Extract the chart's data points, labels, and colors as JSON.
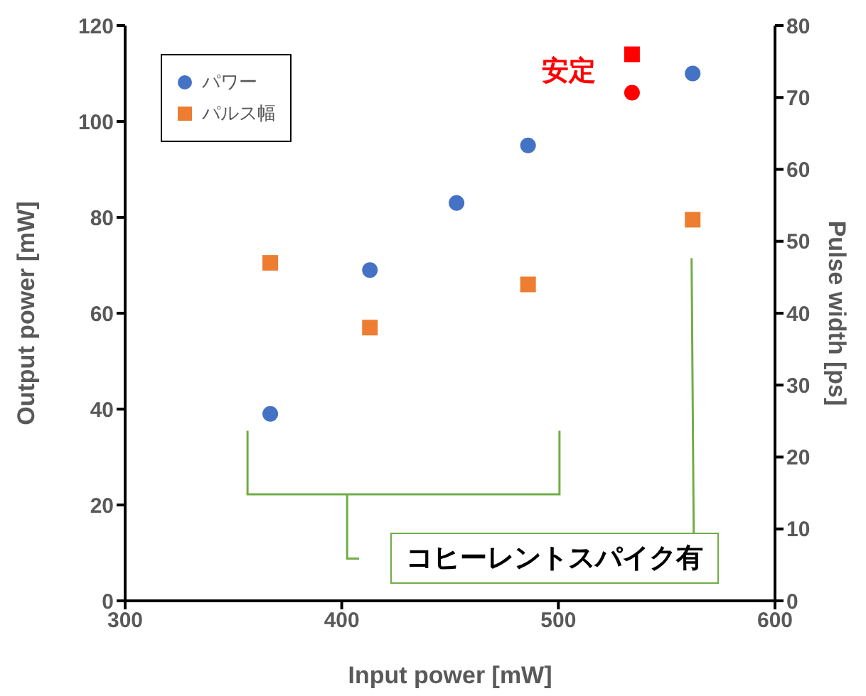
{
  "chart_data": {
    "type": "scatter",
    "xlabel": "Input power [mW]",
    "ylabel": "Output power [mW]",
    "y2label": "Pulse width [ps]",
    "xlim": [
      300,
      600
    ],
    "xticks": [
      300,
      400,
      500,
      600
    ],
    "ylim": [
      0,
      120
    ],
    "yticks": [
      0,
      20,
      40,
      60,
      80,
      100,
      120
    ],
    "y2lim": [
      0,
      80
    ],
    "y2ticks": [
      0,
      10,
      20,
      30,
      40,
      50,
      60,
      70,
      80
    ],
    "grid": false,
    "legend": "top left",
    "series": [
      {
        "name": "パワー",
        "color": "#4472c4",
        "marker": "circle",
        "x": [
          367,
          413,
          453,
          486,
          562
        ],
        "values": [
          39,
          69,
          83,
          95,
          110
        ]
      },
      {
        "name": "パルス幅",
        "color": "#ed7d31",
        "marker": "square",
        "axis": "y2",
        "x": [
          367,
          413,
          486,
          562
        ],
        "values": [
          47,
          38,
          44,
          53
        ]
      },
      {
        "color": "#ff0000",
        "marker": "circle",
        "x": [
          534
        ],
        "values": [
          106
        ]
      },
      {
        "color": "#ff0000",
        "marker": "square",
        "axis": "y2",
        "x": [
          534
        ],
        "values": [
          76
        ]
      }
    ],
    "annotations": [
      "安定",
      "コヒーレントスパイク有"
    ]
  }
}
